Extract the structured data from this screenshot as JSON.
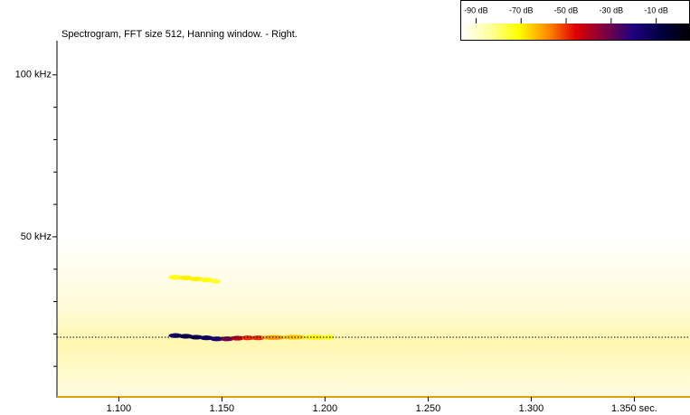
{
  "chart_data": {
    "type": "spectrogram",
    "title": "Spectrogram, FFT size 512, Hanning window. - Right.",
    "xlim": [
      1.07,
      1.377
    ],
    "xticks": [
      {
        "value": 1.1,
        "label": "1.100"
      },
      {
        "value": 1.15,
        "label": "1.150"
      },
      {
        "value": 1.2,
        "label": "1.200"
      },
      {
        "value": 1.25,
        "label": "1.250"
      },
      {
        "value": 1.3,
        "label": "1.300"
      },
      {
        "value": 1.35,
        "label": "1.350 sec."
      }
    ],
    "ylim": [
      0,
      110
    ],
    "yticks": [
      {
        "value": 50,
        "label": "50 kHz"
      },
      {
        "value": 100,
        "label": "100 kHz"
      }
    ],
    "yminorticks": [
      10,
      20,
      30,
      40,
      60,
      70,
      80,
      90
    ],
    "hline": 19,
    "colorbar": {
      "clim": [
        -97,
        5
      ],
      "colors": [
        "#ffffff",
        "#ffffa0",
        "#ffff00",
        "#ff9000",
        "#e00000",
        "#800040",
        "#200080",
        "#000040",
        "#000000"
      ],
      "ticks": [
        {
          "value": -90,
          "label": "-90 dB"
        },
        {
          "value": -70,
          "label": "-70 dB"
        },
        {
          "value": -50,
          "label": "-50 dB"
        },
        {
          "value": -30,
          "label": "-30 dB"
        },
        {
          "value": -10,
          "label": "-10 dB"
        }
      ]
    },
    "series": [
      {
        "x": [
          1.125,
          1.13,
          1.135,
          1.14,
          1.145,
          1.15,
          1.155,
          1.16,
          1.165,
          1.17,
          1.18,
          1.19,
          1.2
        ],
        "values": [
          19.5,
          19.3,
          19,
          18.8,
          18.5,
          18.5,
          18.7,
          18.8,
          18.8,
          18.9,
          19,
          19,
          19
        ],
        "levels": [
          -15,
          -12,
          -12,
          -15,
          -18,
          -30,
          -40,
          -50,
          -50,
          -60,
          -65,
          -70,
          -72
        ]
      },
      {
        "x": [
          1.125,
          1.13,
          1.135,
          1.14,
          1.145
        ],
        "values": [
          37.5,
          37.3,
          37,
          36.7,
          36.3
        ],
        "levels": [
          -72,
          -70,
          -70,
          -72,
          -75
        ]
      }
    ]
  }
}
